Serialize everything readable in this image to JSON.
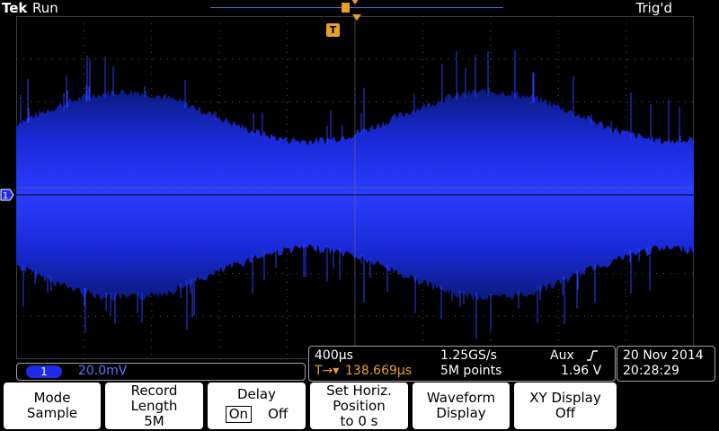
{
  "header": {
    "brand": "Tek",
    "run_state": "Run",
    "trigger_state": "Trig'd"
  },
  "markers": {
    "channel_marker": "1",
    "trigger_marker": "T"
  },
  "channel_readout": {
    "channel": "1",
    "scale": "20.0mV"
  },
  "timebase": {
    "horizontal_scale": "400µs",
    "sample_rate": "1.25GS/s",
    "trigger_source": "Aux",
    "trigger_slope_icon": "rising-edge-icon",
    "delay_label": "T→▾",
    "delay_value": "138.669µs",
    "record_points": "5M points",
    "trigger_level": "1.96 V"
  },
  "datetime": {
    "date": "20 Nov 2014",
    "time": "20:28:29"
  },
  "softkeys": [
    {
      "line1": "Mode",
      "line2": "Sample",
      "line3": ""
    },
    {
      "line1": "Record",
      "line2": "Length",
      "line3": "5M"
    },
    {
      "line1": "Delay",
      "line2": "On",
      "line3": "Off"
    },
    {
      "line1": "Set Horiz.",
      "line2": "Position",
      "line3": "to 0 s"
    },
    {
      "line1": "Waveform",
      "line2": "Display",
      "line3": ""
    },
    {
      "line1": "XY Display",
      "line2": "Off",
      "line3": ""
    }
  ],
  "colors": {
    "trace_core": "#2a3cff",
    "trace_edge": "#0a1a7a",
    "trigger_orange": "#e7a026",
    "channel_blue": "#1f2ce8"
  }
}
